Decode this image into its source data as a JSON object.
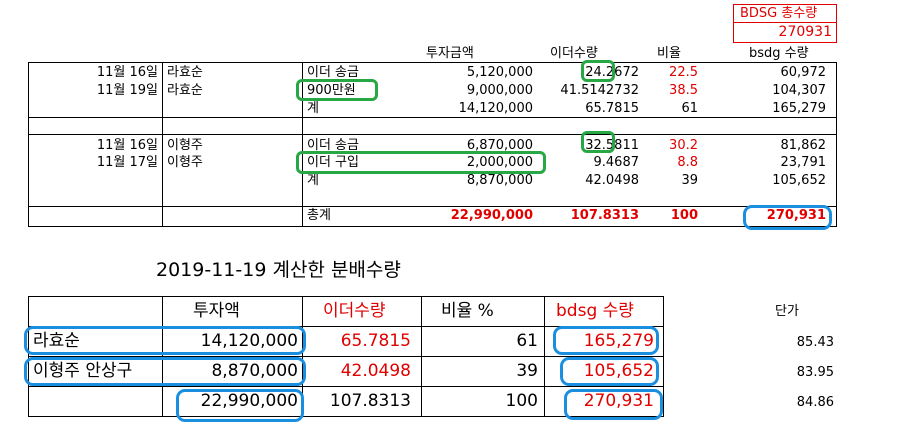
{
  "summary_box": {
    "label": "BDSG 총수량",
    "value": "270931"
  },
  "top_headers": {
    "invest": "투자금액",
    "ether": "이더수량",
    "ratio": "비율",
    "bdsg": "bsdg 수량"
  },
  "top_rows": [
    {
      "date": "11월 16일",
      "name": "라효순",
      "desc": "이더 송금",
      "invest": "5,120,000",
      "ether": "24.2672",
      "ratio": "22.5",
      "bdsg": "60,972"
    },
    {
      "date": "11월 19일",
      "name": "라효순",
      "desc": "900만원",
      "invest": "9,000,000",
      "ether": "41.5142732",
      "ratio": "38.5",
      "bdsg": "104,307"
    },
    {
      "date": "",
      "name": "",
      "desc": "계",
      "invest": "14,120,000",
      "ether": "65.7815",
      "ratio": "61",
      "bdsg": "165,279"
    },
    {
      "date": "",
      "name": "",
      "desc": "",
      "invest": "",
      "ether": "",
      "ratio": "",
      "bdsg": ""
    },
    {
      "date": "11월 16일",
      "name": "이형주",
      "desc": "이더 송금",
      "invest": "6,870,000",
      "ether": "32.5811",
      "ratio": "30.2",
      "bdsg": "81,862"
    },
    {
      "date": "11월 17일",
      "name": "이형주",
      "desc": "이더 구입",
      "invest": "2,000,000",
      "ether": "9.4687",
      "ratio": "8.8",
      "bdsg": "23,791"
    },
    {
      "date": "",
      "name": "",
      "desc": "계",
      "invest": "8,870,000",
      "ether": "42.0498",
      "ratio": "39",
      "bdsg": "105,652"
    },
    {
      "date": "",
      "name": "",
      "desc": "",
      "invest": "",
      "ether": "",
      "ratio": "",
      "bdsg": ""
    },
    {
      "date": "",
      "name": "",
      "desc": "총계",
      "invest": "22,990,000",
      "ether": "107.8313",
      "ratio": "100",
      "bdsg": "270,931"
    }
  ],
  "calc_title": "2019-11-19 계산한 분배수량",
  "bottom_headers": {
    "invest": "투자액",
    "ether": "이더수량",
    "ratio": "비율 %",
    "bdsg": "bdsg 수량",
    "unit": "단가"
  },
  "bottom_rows": [
    {
      "name": "라효순",
      "invest": "14,120,000",
      "ether": "65.7815",
      "ratio": "61",
      "bdsg": "165,279",
      "unit": "85.43"
    },
    {
      "name": "이형주 안상구",
      "invest": "8,870,000",
      "ether": "42.0498",
      "ratio": "39",
      "bdsg": "105,652",
      "unit": "83.95"
    },
    {
      "name": "",
      "invest": "22,990,000",
      "ether": "107.8313",
      "ratio": "100",
      "bdsg": "270,931",
      "unit": "84.86"
    }
  ],
  "colors": {
    "red": "#e00000",
    "green_highlight": "#28a745",
    "blue_highlight": "#1a8fe0"
  }
}
